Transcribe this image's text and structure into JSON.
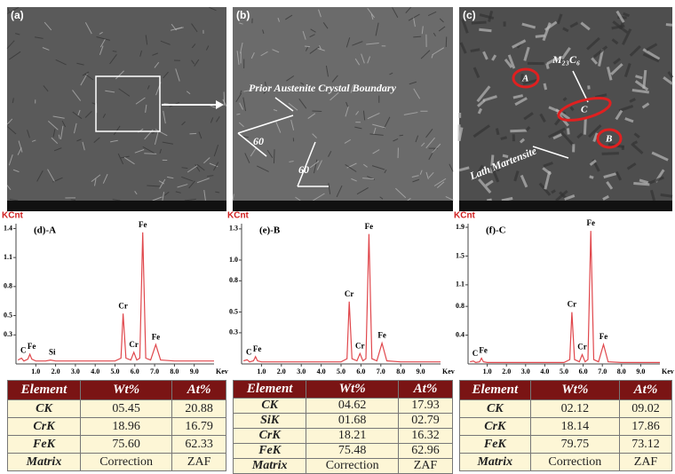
{
  "images": [
    {
      "label": "(a)",
      "notes": []
    },
    {
      "label": "(b)",
      "notes": [
        "Prior Austenite Crystal Boundary",
        "60",
        "60"
      ]
    },
    {
      "label": "(c)",
      "notes": [
        "M₂₃C₆",
        "A",
        "C",
        "B",
        "Lath Martensite"
      ]
    }
  ],
  "chart_data": [
    {
      "type": "line",
      "title": "(d)-A",
      "ylabel": "KCnt",
      "xlabel": "Kev",
      "color": "#e0474c",
      "x": [
        0.1,
        0.28,
        0.4,
        0.6,
        0.7,
        0.8,
        1.0,
        1.5,
        1.74,
        2.0,
        3.0,
        4.0,
        5.0,
        5.3,
        5.41,
        5.55,
        5.8,
        5.95,
        6.1,
        6.25,
        6.4,
        6.55,
        6.8,
        7.06,
        7.3,
        8.0,
        9.0,
        10.0
      ],
      "values": [
        0.04,
        0.06,
        0.03,
        0.05,
        0.1,
        0.05,
        0.03,
        0.03,
        0.04,
        0.03,
        0.03,
        0.03,
        0.03,
        0.06,
        0.52,
        0.06,
        0.04,
        0.12,
        0.04,
        0.06,
        1.36,
        0.06,
        0.04,
        0.2,
        0.04,
        0.03,
        0.03,
        0.03
      ],
      "peaks": [
        {
          "label": "C",
          "x": 0.28,
          "y": 0.06
        },
        {
          "label": "Fe",
          "x": 0.7,
          "y": 0.1
        },
        {
          "label": "Si",
          "x": 1.74,
          "y": 0.04
        },
        {
          "label": "Cr",
          "x": 5.41,
          "y": 0.52
        },
        {
          "label": "Cr",
          "x": 5.95,
          "y": 0.12
        },
        {
          "label": "Fe",
          "x": 6.4,
          "y": 1.36
        },
        {
          "label": "Fe",
          "x": 7.06,
          "y": 0.2
        }
      ],
      "xlim": [
        0,
        10
      ],
      "ylim": [
        0,
        1.45
      ],
      "xticks": [
        {
          "value": 1,
          "label": "1.0"
        },
        {
          "value": 2,
          "label": "2.0"
        },
        {
          "value": 3,
          "label": "3.0"
        },
        {
          "value": 4,
          "label": "4.0"
        },
        {
          "value": 5,
          "label": "5.0"
        },
        {
          "value": 6,
          "label": "6.0"
        },
        {
          "value": 7,
          "label": "7.0"
        },
        {
          "value": 8,
          "label": "8.0"
        },
        {
          "value": 9,
          "label": "9.0"
        }
      ],
      "yticks": [
        0.3,
        0.5,
        0.8,
        1.1,
        1.4
      ]
    },
    {
      "type": "line",
      "title": "(e)-B",
      "ylabel": "KCnt",
      "xlabel": "Kev",
      "color": "#e0474c",
      "x": [
        0.1,
        0.28,
        0.4,
        0.6,
        0.7,
        0.8,
        1.0,
        2.0,
        3.0,
        4.0,
        5.0,
        5.3,
        5.41,
        5.55,
        5.8,
        5.95,
        6.1,
        6.25,
        6.4,
        6.55,
        6.8,
        7.06,
        7.3,
        8.0,
        9.0,
        10.0
      ],
      "values": [
        0.03,
        0.04,
        0.02,
        0.03,
        0.07,
        0.03,
        0.02,
        0.02,
        0.02,
        0.02,
        0.02,
        0.05,
        0.6,
        0.05,
        0.03,
        0.1,
        0.03,
        0.05,
        1.25,
        0.05,
        0.03,
        0.2,
        0.03,
        0.02,
        0.02,
        0.02
      ],
      "peaks": [
        {
          "label": "C",
          "x": 0.28,
          "y": 0.04
        },
        {
          "label": "Fe",
          "x": 0.7,
          "y": 0.07
        },
        {
          "label": "Cr",
          "x": 5.41,
          "y": 0.6
        },
        {
          "label": "Cr",
          "x": 5.95,
          "y": 0.1
        },
        {
          "label": "Fe",
          "x": 6.4,
          "y": 1.25
        },
        {
          "label": "Fe",
          "x": 7.06,
          "y": 0.2
        }
      ],
      "xlim": [
        0,
        10
      ],
      "ylim": [
        0,
        1.35
      ],
      "xticks": [
        {
          "value": 1,
          "label": "1.0"
        },
        {
          "value": 2,
          "label": "2.0"
        },
        {
          "value": 3,
          "label": "3.0"
        },
        {
          "value": 4,
          "label": "4.0"
        },
        {
          "value": 5,
          "label": "5.0"
        },
        {
          "value": 6,
          "label": "6.0"
        },
        {
          "value": 7,
          "label": "7.0"
        },
        {
          "value": 8,
          "label": "8.0"
        },
        {
          "value": 9,
          "label": "9.0"
        }
      ],
      "yticks": [
        0.3,
        0.5,
        0.8,
        {
          "value": 1,
          "label": "1.0"
        },
        1.3
      ]
    },
    {
      "type": "line",
      "title": "(f)-C",
      "ylabel": "KCnt",
      "xlabel": "Kev",
      "color": "#e0474c",
      "x": [
        0.1,
        0.28,
        0.4,
        0.6,
        0.7,
        0.8,
        1.0,
        2.0,
        3.0,
        4.0,
        5.0,
        5.3,
        5.41,
        5.55,
        5.8,
        5.95,
        6.1,
        6.25,
        6.4,
        6.55,
        6.8,
        7.06,
        7.3,
        8.0,
        9.0,
        10.0
      ],
      "values": [
        0.03,
        0.04,
        0.02,
        0.03,
        0.08,
        0.03,
        0.02,
        0.02,
        0.02,
        0.02,
        0.02,
        0.06,
        0.72,
        0.06,
        0.03,
        0.13,
        0.03,
        0.06,
        1.85,
        0.06,
        0.03,
        0.27,
        0.03,
        0.02,
        0.02,
        0.02
      ],
      "peaks": [
        {
          "label": "C",
          "x": 0.28,
          "y": 0.04
        },
        {
          "label": "Fe",
          "x": 0.7,
          "y": 0.08
        },
        {
          "label": "Cr",
          "x": 5.41,
          "y": 0.72
        },
        {
          "label": "Cr",
          "x": 5.95,
          "y": 0.13
        },
        {
          "label": "Fe",
          "x": 6.4,
          "y": 1.85
        },
        {
          "label": "Fe",
          "x": 7.06,
          "y": 0.27
        }
      ],
      "xlim": [
        0,
        10
      ],
      "ylim": [
        0,
        1.95
      ],
      "xticks": [
        {
          "value": 1,
          "label": "1.0"
        },
        {
          "value": 2,
          "label": "2.0"
        },
        {
          "value": 3,
          "label": "3.0"
        },
        {
          "value": 4,
          "label": "4.0"
        },
        {
          "value": 5,
          "label": "5.0"
        },
        {
          "value": 6,
          "label": "6.0"
        },
        {
          "value": 7,
          "label": "7.0"
        },
        {
          "value": 8,
          "label": "8.0"
        },
        {
          "value": 9,
          "label": "9.0"
        }
      ],
      "yticks": [
        0.4,
        0.8,
        1.1,
        1.5,
        1.9
      ]
    }
  ],
  "tables": [
    {
      "header": [
        "Element",
        "Wt%",
        "At%"
      ],
      "rows": [
        [
          "CK",
          "05.45",
          "20.88"
        ],
        [
          "CrK",
          "18.96",
          "16.79"
        ],
        [
          "FeK",
          "75.60",
          "62.33"
        ],
        [
          "Matrix",
          "Correction",
          "ZAF"
        ]
      ]
    },
    {
      "header": [
        "Element",
        "Wt%",
        "At%"
      ],
      "rows": [
        [
          "CK",
          "04.62",
          "17.93"
        ],
        [
          "SiK",
          "01.68",
          "02.79"
        ],
        [
          "CrK",
          "18.21",
          "16.32"
        ],
        [
          "FeK",
          "75.48",
          "62.96"
        ],
        [
          "Matrix",
          "Correction",
          "ZAF"
        ]
      ]
    },
    {
      "header": [
        "Element",
        "Wt%",
        "At%"
      ],
      "rows": [
        [
          "CK",
          "02.12",
          "09.02"
        ],
        [
          "CrK",
          "18.14",
          "17.86"
        ],
        [
          "FeK",
          "79.75",
          "73.12"
        ],
        [
          "Matrix",
          "Correction",
          "ZAF"
        ]
      ]
    }
  ]
}
